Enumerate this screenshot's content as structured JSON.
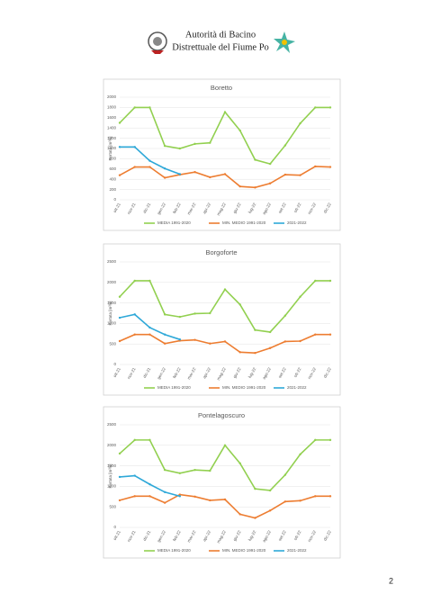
{
  "header": {
    "line1": "Autorità di Bacino",
    "line2": "Distrettuale del Fiume Po"
  },
  "page_number": "2",
  "chart_data": [
    {
      "type": "line",
      "title": "Boretto",
      "y_label": "Portata [m³/s]",
      "categories": [
        "ott-21",
        "nov-21",
        "dic-21",
        "gen-22",
        "feb-22",
        "mar-22",
        "apr-22",
        "mag-22",
        "giu-22",
        "lug-22",
        "ago-22",
        "set-22",
        "ott-22",
        "nov-22",
        "dic-22"
      ],
      "ylim": [
        0,
        2000
      ],
      "yticks": [
        0,
        200,
        400,
        600,
        800,
        1000,
        1200,
        1400,
        1600,
        1800,
        2000
      ],
      "grid": true,
      "series": [
        {
          "name": "MEDIA 1991-2020",
          "color": "#92d050",
          "values": [
            1500,
            1800,
            1800,
            1050,
            1000,
            1090,
            1110,
            1710,
            1350,
            780,
            700,
            1060,
            1490,
            1800,
            1800
          ]
        },
        {
          "name": "MIN. MEDIO 1991-2020",
          "color": "#ed7d31",
          "values": [
            480,
            640,
            640,
            430,
            490,
            540,
            440,
            500,
            260,
            240,
            320,
            490,
            480,
            650,
            640
          ]
        },
        {
          "name": "2021-2022",
          "color": "#2ea8d8",
          "values": [
            1030,
            1030,
            760,
            610,
            500,
            null,
            null,
            null,
            null,
            null,
            null,
            null,
            null,
            null,
            null
          ]
        }
      ]
    },
    {
      "type": "line",
      "title": "Borgoforte",
      "y_label": "Portata [m³/s]",
      "categories": [
        "ott-21",
        "nov-21",
        "dic-21",
        "gen-22",
        "feb-22",
        "mar-22",
        "apr-22",
        "mag-22",
        "giu-22",
        "lug-22",
        "ago-22",
        "set-22",
        "ott-22",
        "nov-22",
        "dic-22"
      ],
      "ylim": [
        0,
        2500
      ],
      "yticks": [
        0,
        500,
        1000,
        1500,
        2000,
        2500
      ],
      "grid": true,
      "series": [
        {
          "name": "MEDIA 1991-2020",
          "color": "#92d050",
          "values": [
            1650,
            2040,
            2040,
            1220,
            1160,
            1240,
            1250,
            1830,
            1460,
            840,
            790,
            1190,
            1650,
            2040,
            2040
          ]
        },
        {
          "name": "MIN. MEDIO 1991-2020",
          "color": "#ed7d31",
          "values": [
            570,
            730,
            730,
            510,
            580,
            600,
            510,
            560,
            300,
            280,
            400,
            560,
            570,
            730,
            730
          ]
        },
        {
          "name": "2021-2022",
          "color": "#2ea8d8",
          "values": [
            1140,
            1220,
            900,
            730,
            610,
            null,
            null,
            null,
            null,
            null,
            null,
            null,
            null,
            null,
            null
          ]
        }
      ]
    },
    {
      "type": "line",
      "title": "Pontelagoscuro",
      "y_label": "Portata [m³/s]",
      "categories": [
        "ott-21",
        "nov-21",
        "dic-21",
        "gen-22",
        "feb-22",
        "mar-22",
        "apr-22",
        "mag-22",
        "giu-22",
        "lug-22",
        "ago-22",
        "set-22",
        "ott-22",
        "nov-22",
        "dic-22"
      ],
      "ylim": [
        0,
        2500
      ],
      "yticks": [
        0,
        500,
        1000,
        1500,
        2000,
        2500
      ],
      "grid": true,
      "series": [
        {
          "name": "MEDIA 1991-2020",
          "color": "#92d050",
          "values": [
            1800,
            2130,
            2130,
            1400,
            1320,
            1400,
            1380,
            2000,
            1560,
            940,
            900,
            1280,
            1780,
            2130,
            2130
          ]
        },
        {
          "name": "MIN. MEDIO 1991-2020",
          "color": "#ed7d31",
          "values": [
            660,
            760,
            760,
            600,
            800,
            750,
            660,
            680,
            320,
            230,
            410,
            630,
            650,
            760,
            760
          ]
        },
        {
          "name": "2021-2022",
          "color": "#2ea8d8",
          "values": [
            1230,
            1260,
            1050,
            860,
            760,
            null,
            null,
            null,
            null,
            null,
            null,
            null,
            null,
            null,
            null
          ]
        }
      ]
    }
  ]
}
